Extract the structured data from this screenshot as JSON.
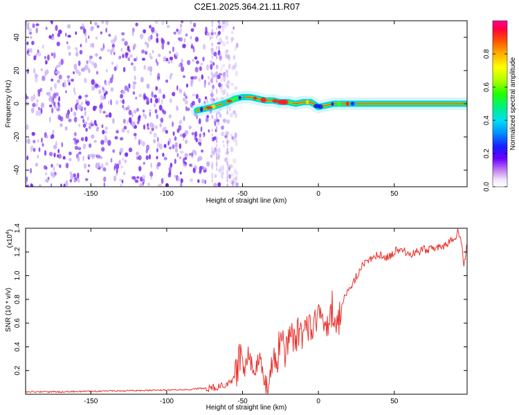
{
  "title": "C2E1.2025.364.21.11.R07",
  "colors": {
    "snr_line": "#e8302c",
    "spectrum_noise": "#7b2ff0",
    "spectrum_noise_light": "#c9b0f6"
  },
  "chart_data": [
    {
      "type": "heatmap",
      "title": "C2E1.2025.364.21.11.R07",
      "xlabel": "Height of straight line (km)",
      "ylabel": "Frequency (Hz)",
      "xlim": [
        -193,
        98
      ],
      "ylim": [
        -50,
        50
      ],
      "xticks": [
        -150,
        -100,
        -50,
        0,
        50
      ],
      "yticks": [
        -40,
        -20,
        0,
        20,
        40
      ],
      "xtick_labels": [
        "-150",
        "-100",
        "-50",
        "0",
        "50"
      ],
      "ytick_labels": [
        "-40",
        "-20",
        "0",
        "20",
        "40"
      ],
      "noise_region_end_km": -65,
      "signal_onset_km": -80,
      "signal_track": {
        "x": [
          -80,
          -70,
          -60,
          -55,
          -50,
          -45,
          -40,
          -35,
          -30,
          -25,
          -20,
          -15,
          -10,
          -5,
          0,
          5,
          10,
          20,
          40,
          60,
          80,
          98
        ],
        "freq": [
          -4,
          -2,
          1,
          3,
          4,
          4,
          3,
          2,
          2,
          1,
          1,
          0,
          1,
          1,
          -2,
          -1,
          0,
          0,
          0,
          0,
          0,
          0
        ]
      },
      "colorbar": {
        "label": "Normalized spectral amplitude",
        "range": [
          0.0,
          1.0
        ],
        "ticks": [
          0.0,
          0.2,
          0.4,
          0.6,
          0.8
        ],
        "tick_labels": [
          "0.0",
          "0.2",
          "0.4",
          "0.6",
          "0.8"
        ]
      }
    },
    {
      "type": "line",
      "xlabel": "Height of straight line (km)",
      "ylabel": "SNR (10 * v/v)",
      "multiplier": "(x10",
      "multiplier_exp": "4",
      "multiplier_close": ")",
      "xlim": [
        -193,
        98
      ],
      "ylim": [
        0,
        1.4
      ],
      "xticks": [
        -150,
        -100,
        -50,
        0,
        50
      ],
      "yticks": [
        0.2,
        0.4,
        0.6,
        0.8,
        1.0,
        1.2,
        1.4
      ],
      "xtick_labels": [
        "-150",
        "-100",
        "-50",
        "0",
        "50"
      ],
      "ytick_labels": [
        "0.2",
        "0.4",
        "0.6",
        "0.8",
        "1.0",
        "1.2",
        "1.4"
      ],
      "series": [
        {
          "name": "SNR",
          "x": [
            -193,
            -170,
            -150,
            -120,
            -100,
            -85,
            -78,
            -72,
            -66,
            -62,
            -58,
            -55,
            -52,
            -50,
            -48,
            -46,
            -44,
            -42,
            -40,
            -38,
            -36,
            -34,
            -32,
            -30,
            -28,
            -26,
            -24,
            -22,
            -20,
            -18,
            -16,
            -14,
            -12,
            -10,
            -8,
            -6,
            -4,
            -2,
            0,
            2,
            4,
            6,
            8,
            10,
            12,
            14,
            16,
            18,
            20,
            22,
            25,
            30,
            35,
            40,
            45,
            50,
            55,
            60,
            65,
            70,
            75,
            80,
            85,
            88,
            90,
            92,
            94,
            96,
            98
          ],
          "y": [
            0.02,
            0.02,
            0.025,
            0.03,
            0.035,
            0.04,
            0.05,
            0.05,
            0.06,
            0.08,
            0.1,
            0.15,
            0.3,
            0.28,
            0.22,
            0.45,
            0.2,
            0.25,
            0.12,
            0.2,
            0.1,
            0.08,
            0.12,
            0.3,
            0.2,
            0.4,
            0.5,
            0.35,
            0.45,
            0.55,
            0.42,
            0.5,
            0.58,
            0.45,
            0.55,
            0.6,
            0.5,
            0.62,
            0.7,
            0.58,
            0.65,
            0.6,
            0.72,
            0.62,
            0.55,
            0.65,
            0.75,
            0.85,
            0.88,
            0.92,
            1.0,
            1.1,
            1.15,
            1.18,
            1.15,
            1.2,
            1.23,
            1.18,
            1.2,
            1.22,
            1.22,
            1.24,
            1.26,
            1.3,
            1.32,
            1.38,
            1.28,
            1.1,
            1.27
          ]
        }
      ]
    }
  ]
}
